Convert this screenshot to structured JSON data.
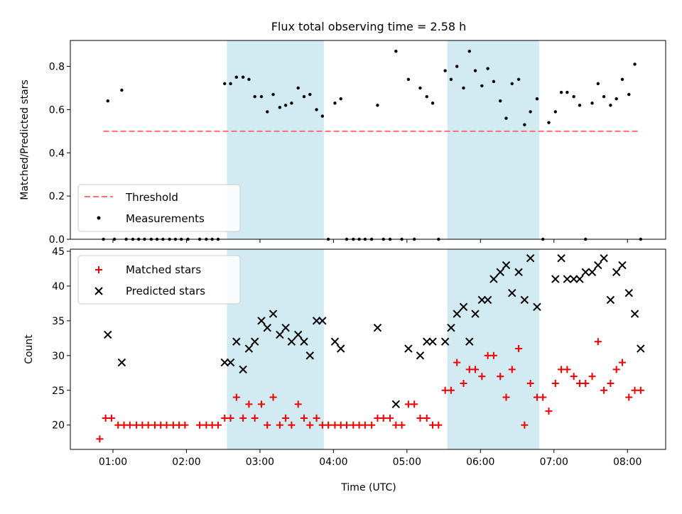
{
  "title": "Flux total observing time = 2.58 h",
  "colors": {
    "threshold": "#ff7070",
    "measurement": "#000000",
    "matched": "#ee0000",
    "predicted": "#000000",
    "shade": "#add8e6"
  },
  "chart_data": [
    {
      "type": "scatter",
      "panel": "top",
      "ylabel": "Matched/Predicted stars",
      "xlabel": "",
      "x_unit": "hours UTC",
      "xlim": [
        0.42,
        8.52
      ],
      "ylim": [
        0.0,
        0.92
      ],
      "yticks": [
        0.0,
        0.2,
        0.4,
        0.6,
        0.8
      ],
      "ytick_labels": [
        "0.0",
        "0.2",
        "0.4",
        "0.6",
        "0.8"
      ],
      "legend": {
        "position": "lower-left",
        "entries": [
          "Threshold",
          "Measurements"
        ]
      },
      "shaded_regions": [
        [
          2.55,
          3.87
        ],
        [
          5.55,
          6.8
        ]
      ],
      "threshold": {
        "name": "Threshold",
        "value": 0.5,
        "x_range": [
          0.87,
          8.17
        ]
      },
      "series": [
        {
          "name": "Measurements",
          "x": [
            0.87,
            0.93,
            1.02,
            1.12,
            1.18,
            1.27,
            1.35,
            1.43,
            1.52,
            1.6,
            1.68,
            1.77,
            1.85,
            1.93,
            2.02,
            2.18,
            2.27,
            2.35,
            2.43,
            2.52,
            2.6,
            2.68,
            2.77,
            2.85,
            2.93,
            3.02,
            3.1,
            3.18,
            3.27,
            3.35,
            3.43,
            3.52,
            3.6,
            3.68,
            3.77,
            3.85,
            3.93,
            4.02,
            4.1,
            4.18,
            4.27,
            4.35,
            4.43,
            4.52,
            4.6,
            4.68,
            4.77,
            4.85,
            4.93,
            5.02,
            5.1,
            5.18,
            5.27,
            5.35,
            5.43,
            5.52,
            5.6,
            5.68,
            5.77,
            5.85,
            5.93,
            6.02,
            6.1,
            6.18,
            6.27,
            6.35,
            6.43,
            6.52,
            6.6,
            6.68,
            6.77,
            6.85,
            6.93,
            7.02,
            7.1,
            7.18,
            7.27,
            7.35,
            7.43,
            7.52,
            7.6,
            7.68,
            7.77,
            7.85,
            7.93,
            8.02,
            8.1,
            8.18
          ],
          "y": [
            0.0,
            0.64,
            0.0,
            0.69,
            0.0,
            0.0,
            0.0,
            0.0,
            0.0,
            0.0,
            0.0,
            0.0,
            0.0,
            0.0,
            0.0,
            0.0,
            0.0,
            0.0,
            0.0,
            0.72,
            0.72,
            0.75,
            0.75,
            0.74,
            0.66,
            0.66,
            0.59,
            0.67,
            0.61,
            0.62,
            0.63,
            0.7,
            0.66,
            0.67,
            0.6,
            0.57,
            0.0,
            0.63,
            0.65,
            0.0,
            0.0,
            0.0,
            0.0,
            0.0,
            0.62,
            0.0,
            0.0,
            0.87,
            0.0,
            0.74,
            0.0,
            0.7,
            0.66,
            0.63,
            0.0,
            0.78,
            0.74,
            0.8,
            0.7,
            0.87,
            0.78,
            0.71,
            0.79,
            0.73,
            0.64,
            0.56,
            0.72,
            0.74,
            0.53,
            0.59,
            0.65,
            0.0,
            0.54,
            0.59,
            0.68,
            0.68,
            0.66,
            0.62,
            0.0,
            0.63,
            0.72,
            0.66,
            0.62,
            0.65,
            0.74,
            0.67,
            0.81,
            0.0
          ]
        }
      ]
    },
    {
      "type": "scatter",
      "panel": "bottom",
      "ylabel": "Count",
      "xlabel": "Time (UTC)",
      "x_unit": "hours UTC",
      "xlim": [
        0.42,
        8.52
      ],
      "ylim": [
        16.5,
        45.3
      ],
      "yticks": [
        20,
        25,
        30,
        35,
        40,
        45
      ],
      "ytick_labels": [
        "20",
        "25",
        "30",
        "35",
        "40",
        "45"
      ],
      "xticks": [
        1,
        2,
        3,
        4,
        5,
        6,
        7,
        8
      ],
      "xtick_labels": [
        "01:00",
        "02:00",
        "03:00",
        "04:00",
        "05:00",
        "06:00",
        "07:00",
        "08:00"
      ],
      "legend": {
        "position": "upper-left",
        "entries": [
          "Matched stars",
          "Predicted stars"
        ]
      },
      "shaded_regions": [
        [
          2.55,
          3.87
        ],
        [
          5.55,
          6.8
        ]
      ],
      "series": [
        {
          "name": "Matched stars",
          "marker": "plus",
          "x": [
            0.82,
            0.9,
            0.98,
            1.07,
            1.15,
            1.23,
            1.32,
            1.4,
            1.48,
            1.57,
            1.65,
            1.73,
            1.82,
            1.9,
            1.98,
            2.18,
            2.27,
            2.35,
            2.43,
            2.52,
            2.6,
            2.68,
            2.77,
            2.85,
            2.93,
            3.02,
            3.1,
            3.18,
            3.27,
            3.35,
            3.43,
            3.52,
            3.6,
            3.68,
            3.77,
            3.85,
            3.93,
            4.02,
            4.1,
            4.18,
            4.27,
            4.35,
            4.43,
            4.52,
            4.6,
            4.68,
            4.77,
            4.85,
            4.93,
            5.02,
            5.1,
            5.18,
            5.27,
            5.35,
            5.43,
            5.52,
            5.6,
            5.68,
            5.77,
            5.85,
            5.93,
            6.02,
            6.1,
            6.18,
            6.27,
            6.35,
            6.43,
            6.52,
            6.6,
            6.68,
            6.77,
            6.85,
            6.93,
            7.02,
            7.1,
            7.18,
            7.27,
            7.35,
            7.43,
            7.52,
            7.6,
            7.68,
            7.77,
            7.85,
            7.93,
            8.02,
            8.1,
            8.18
          ],
          "y": [
            18,
            21,
            21,
            20,
            20,
            20,
            20,
            20,
            20,
            20,
            20,
            20,
            20,
            20,
            20,
            20,
            20,
            20,
            20,
            21,
            21,
            24,
            21,
            23,
            21,
            23,
            20,
            24,
            20,
            21,
            20,
            23,
            21,
            20,
            21,
            20,
            20,
            20,
            20,
            20,
            20,
            20,
            20,
            20,
            21,
            21,
            21,
            20,
            20,
            23,
            23,
            21,
            21,
            20,
            20,
            25,
            25,
            29,
            26,
            28,
            28,
            27,
            30,
            30,
            27,
            24,
            28,
            31,
            20,
            26,
            24,
            24,
            22,
            26,
            28,
            28,
            27,
            26,
            26,
            27,
            32,
            25,
            26,
            28,
            29,
            24,
            25,
            25
          ]
        },
        {
          "name": "Predicted stars",
          "marker": "x",
          "x": [
            0.93,
            1.12,
            2.52,
            2.6,
            2.68,
            2.77,
            2.85,
            2.93,
            3.02,
            3.1,
            3.18,
            3.27,
            3.35,
            3.43,
            3.52,
            3.6,
            3.68,
            3.77,
            3.85,
            4.02,
            4.1,
            4.6,
            4.85,
            5.02,
            5.18,
            5.27,
            5.35,
            5.52,
            5.6,
            5.68,
            5.77,
            5.85,
            5.93,
            6.02,
            6.1,
            6.18,
            6.27,
            6.35,
            6.43,
            6.52,
            6.6,
            6.68,
            6.77,
            7.02,
            7.1,
            7.18,
            7.27,
            7.35,
            7.43,
            7.52,
            7.6,
            7.68,
            7.77,
            7.85,
            7.93,
            8.02,
            8.1,
            8.18
          ],
          "y": [
            33,
            29,
            29,
            29,
            32,
            28,
            31,
            32,
            35,
            34,
            36,
            33,
            34,
            32,
            33,
            32,
            30,
            35,
            35,
            32,
            31,
            34,
            23,
            31,
            30,
            32,
            32,
            32,
            34,
            36,
            37,
            32,
            36,
            38,
            38,
            41,
            42,
            43,
            39,
            42,
            38,
            44,
            37,
            41,
            44,
            41,
            41,
            41,
            42,
            42,
            43,
            44,
            38,
            42,
            43,
            39,
            36,
            31
          ]
        }
      ]
    }
  ]
}
